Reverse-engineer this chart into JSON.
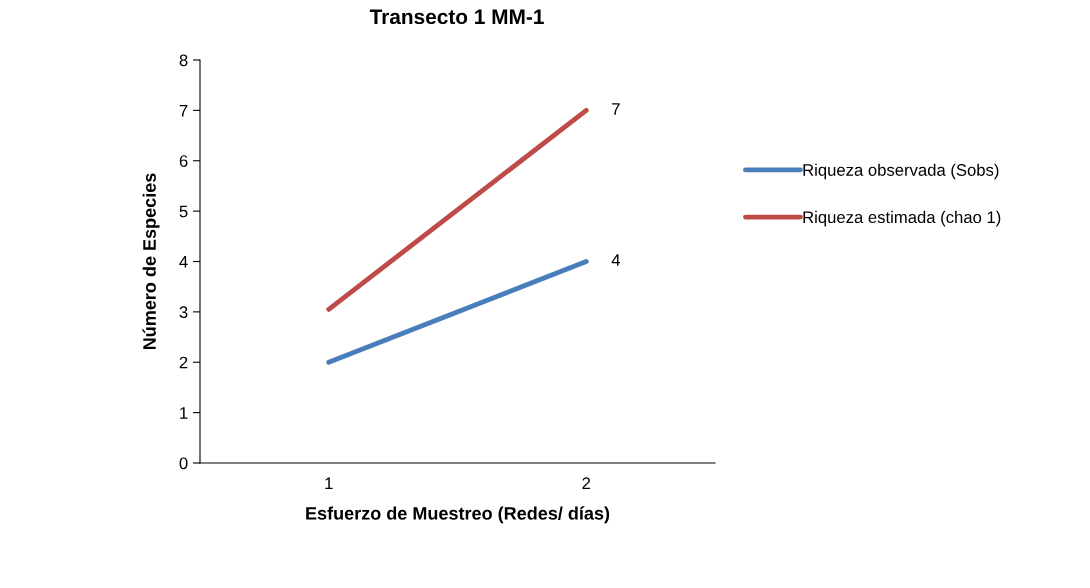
{
  "chart_data": {
    "type": "line",
    "title": "Transecto 1 MM-1",
    "xlabel": "Esfuerzo de Muestreo (Redes/ días)",
    "ylabel": "Número de Especies",
    "categories": [
      "1",
      "2"
    ],
    "series": [
      {
        "name": "Riqueza observada (Sobs)",
        "color": "#4a7ebb",
        "values": [
          2,
          4
        ],
        "value_labels": [
          null,
          "4"
        ]
      },
      {
        "name": "Riqueza estimada (chao 1)",
        "color": "#be4b48",
        "values": [
          3.05,
          7
        ],
        "value_labels": [
          null,
          "7"
        ]
      }
    ],
    "ylim": [
      0,
      8
    ],
    "yticks": [
      0,
      1,
      2,
      3,
      4,
      5,
      6,
      7,
      8
    ],
    "grid": false,
    "legend": "right",
    "marker": "none",
    "line_style": "solid"
  }
}
